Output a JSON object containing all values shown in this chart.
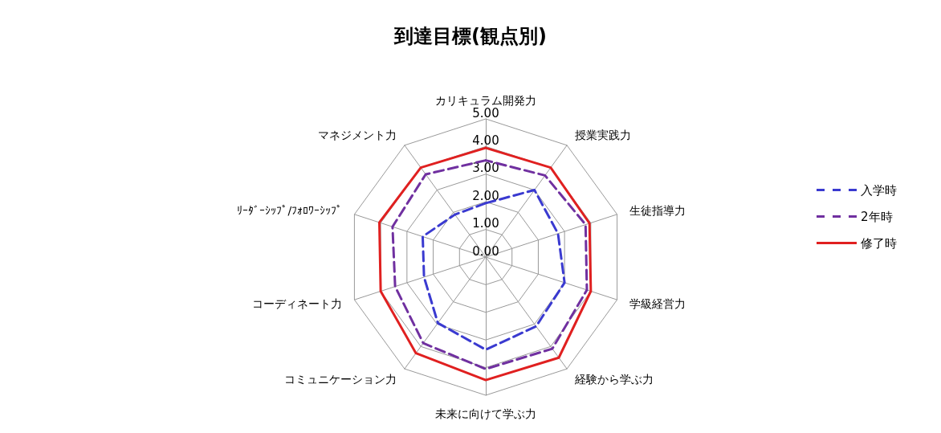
{
  "chart_data": {
    "type": "radar",
    "title": "到達目標(観点別)",
    "categories": [
      "カリキュラム開発力",
      "授業実践力",
      "生徒指導力",
      "学級経営力",
      "経験から学ぶ力",
      "未来に向けて学ぶ力",
      "コミュニケーション力",
      "コーディネート力",
      "ﾘｰﾀﾞｰｼｯﾌﾟ/ﾌｫﾛﾜｰｼｯﾌﾟ",
      "マネジメント力"
    ],
    "series": [
      {
        "name": "入学時",
        "color": "#3a3ad0",
        "line_style": "dashed",
        "values": [
          1.95,
          3.0,
          2.75,
          3.0,
          3.1,
          3.35,
          2.95,
          2.35,
          2.4,
          1.9
        ]
      },
      {
        "name": "2年時",
        "color": "#7030a0",
        "line_style": "dashed",
        "values": [
          3.5,
          3.65,
          3.8,
          3.85,
          4.1,
          4.05,
          3.85,
          3.45,
          3.55,
          3.7
        ]
      },
      {
        "name": "修了時",
        "color": "#e02020",
        "line_style": "solid",
        "values": [
          3.95,
          4.0,
          3.95,
          4.0,
          4.5,
          4.45,
          4.3,
          4.0,
          4.05,
          4.0
        ]
      }
    ],
    "ylim": [
      0,
      5
    ],
    "yticks": [
      {
        "value": 0,
        "label": "0.00"
      },
      {
        "value": 1,
        "label": "1.00"
      },
      {
        "value": 2,
        "label": "2.00"
      },
      {
        "value": 3,
        "label": "3.00"
      },
      {
        "value": 4,
        "label": "4.00"
      },
      {
        "value": 5,
        "label": "5.00"
      }
    ],
    "grid": true,
    "legend": "right",
    "marker": "none"
  }
}
